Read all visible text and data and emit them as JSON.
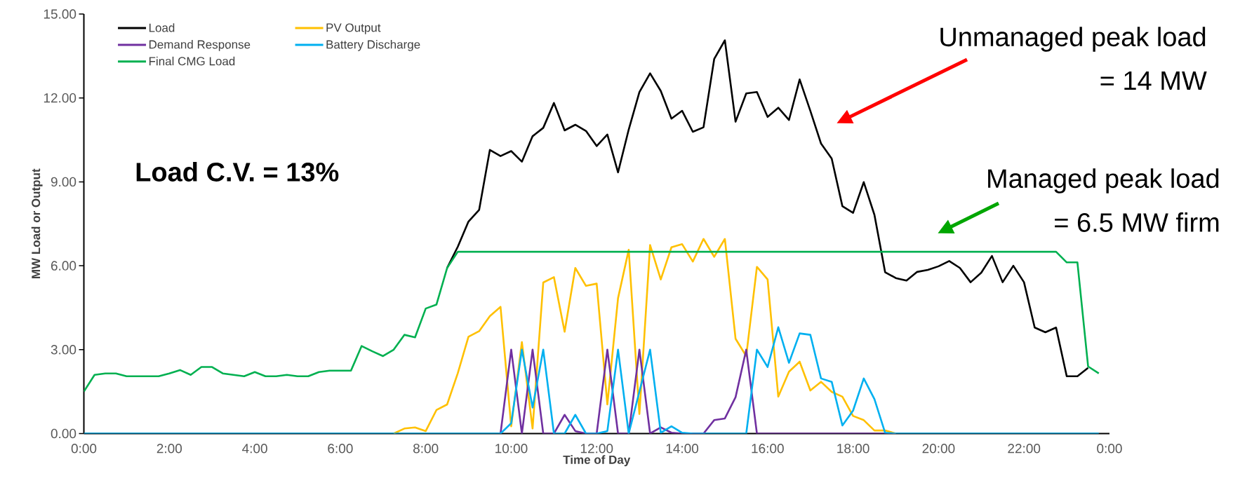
{
  "chart_data": {
    "type": "line",
    "xlabel": "Time of Day",
    "ylabel": "MW Load or Output",
    "x": [
      0,
      0.25,
      0.5,
      0.75,
      1,
      1.25,
      1.5,
      1.75,
      2,
      2.25,
      2.5,
      2.75,
      3,
      3.25,
      3.5,
      3.75,
      4,
      4.25,
      4.5,
      4.75,
      5,
      5.25,
      5.5,
      5.75,
      6,
      6.25,
      6.5,
      6.75,
      7,
      7.25,
      7.5,
      7.75,
      8,
      8.25,
      8.5,
      8.75,
      9,
      9.25,
      9.5,
      9.75,
      10,
      10.25,
      10.5,
      10.75,
      11,
      11.25,
      11.5,
      11.75,
      12,
      12.25,
      12.5,
      12.75,
      13,
      13.25,
      13.5,
      13.75,
      14,
      14.25,
      14.5,
      14.75,
      15,
      15.25,
      15.5,
      15.75,
      16,
      16.25,
      16.5,
      16.75,
      17,
      17.25,
      17.5,
      17.75,
      18,
      18.25,
      18.5,
      18.75,
      19,
      19.25,
      19.5,
      19.75,
      20,
      20.25,
      20.5,
      20.75,
      21,
      21.25,
      21.5,
      21.75,
      22,
      22.25,
      22.5,
      22.75,
      23,
      23.25,
      23.5,
      23.75
    ],
    "series": [
      {
        "name": "Load",
        "color": "#000000",
        "values": [
          null,
          null,
          null,
          null,
          null,
          null,
          null,
          null,
          null,
          null,
          null,
          null,
          null,
          null,
          null,
          null,
          null,
          null,
          null,
          null,
          null,
          null,
          null,
          null,
          null,
          null,
          null,
          null,
          null,
          null,
          null,
          null,
          null,
          null,
          5.92,
          6.68,
          7.58,
          8.0,
          10.14,
          9.92,
          10.1,
          9.72,
          10.63,
          10.93,
          11.82,
          10.84,
          11.04,
          10.82,
          10.28,
          10.69,
          9.34,
          10.87,
          12.21,
          12.88,
          12.25,
          11.26,
          11.54,
          10.79,
          10.95,
          13.39,
          14.06,
          11.15,
          12.16,
          12.21,
          11.32,
          11.65,
          11.21,
          12.66,
          11.54,
          10.37,
          9.83,
          8.13,
          7.89,
          8.99,
          7.82,
          5.77,
          5.56,
          5.47,
          5.78,
          5.85,
          5.98,
          6.17,
          5.92,
          5.41,
          5.75,
          6.35,
          5.41,
          6.0,
          5.41,
          3.79,
          3.62,
          3.79,
          2.05,
          2.05,
          2.35,
          null
        ]
      },
      {
        "name": "PV Output",
        "color": "#ffc000",
        "values": [
          null,
          null,
          null,
          null,
          null,
          null,
          null,
          null,
          null,
          null,
          null,
          null,
          null,
          null,
          null,
          null,
          null,
          null,
          null,
          null,
          null,
          null,
          null,
          null,
          null,
          null,
          null,
          null,
          null,
          0,
          0.18,
          0.22,
          0.09,
          0.84,
          1.04,
          2.16,
          3.46,
          3.66,
          4.2,
          4.53,
          0.26,
          3.27,
          0.18,
          5.4,
          5.59,
          3.64,
          5.92,
          5.28,
          5.36,
          1.04,
          4.84,
          6.57,
          0.7,
          6.74,
          5.51,
          6.66,
          6.77,
          6.15,
          6.96,
          6.32,
          6.96,
          3.39,
          2.77,
          5.96,
          5.51,
          1.32,
          2.21,
          2.57,
          1.54,
          1.85,
          1.49,
          1.32,
          0.63,
          0.48,
          0.11,
          0.11,
          0,
          null,
          null,
          null,
          null,
          null,
          null,
          null,
          null,
          null,
          null,
          null,
          null,
          null,
          null,
          null,
          null,
          null,
          null,
          null
        ]
      },
      {
        "name": "Demand Response",
        "color": "#7030a0",
        "values": [
          null,
          null,
          null,
          null,
          null,
          null,
          null,
          null,
          null,
          null,
          null,
          null,
          null,
          null,
          null,
          null,
          null,
          null,
          null,
          null,
          null,
          null,
          null,
          null,
          null,
          null,
          null,
          null,
          null,
          null,
          null,
          null,
          null,
          null,
          null,
          null,
          null,
          null,
          null,
          0,
          3.0,
          0,
          3.0,
          0,
          0,
          0.67,
          0.09,
          0,
          0,
          3.0,
          0,
          0,
          3.0,
          0,
          0.22,
          0.03,
          0,
          0,
          0,
          0.48,
          0.54,
          1.3,
          3.0,
          0,
          0,
          0,
          0,
          0,
          0,
          0,
          0,
          0,
          0,
          0,
          0,
          0,
          0,
          null,
          null,
          null,
          null,
          null,
          null,
          null,
          null,
          null,
          null,
          null,
          null,
          null,
          null,
          null,
          null,
          null,
          null,
          null
        ]
      },
      {
        "name": "Battery Discharge",
        "color": "#00b0f0",
        "values": [
          0,
          0,
          0,
          0,
          0,
          0,
          0,
          0,
          0,
          0,
          0,
          0,
          0,
          0,
          0,
          0,
          0,
          0,
          0,
          0,
          0,
          0,
          0,
          0,
          0,
          0,
          0,
          0,
          0,
          0,
          0,
          0,
          0,
          0,
          0,
          0,
          0,
          0,
          0,
          0,
          0.37,
          3.0,
          0.93,
          3.0,
          0,
          0,
          0.67,
          0,
          0,
          0.09,
          3.0,
          0,
          1.5,
          3.0,
          0.03,
          0.26,
          0.03,
          0,
          0,
          0,
          0,
          0,
          0,
          3.0,
          2.38,
          3.8,
          2.53,
          3.58,
          3.53,
          1.97,
          1.85,
          0.29,
          0.82,
          1.97,
          1.23,
          0.03,
          0,
          0,
          0,
          0,
          0,
          0,
          0,
          0,
          0,
          0,
          0,
          0,
          0,
          0,
          0,
          0,
          0,
          0,
          0,
          0
        ]
      },
      {
        "name": "Final CMG Load",
        "color": "#00b050",
        "values": [
          1.5,
          2.1,
          2.15,
          2.15,
          2.05,
          2.05,
          2.05,
          2.05,
          2.15,
          2.27,
          2.1,
          2.38,
          2.38,
          2.15,
          2.1,
          2.05,
          2.2,
          2.05,
          2.05,
          2.1,
          2.05,
          2.05,
          2.2,
          2.25,
          2.25,
          2.25,
          3.13,
          2.94,
          2.77,
          3.0,
          3.53,
          3.44,
          4.47,
          4.61,
          5.92,
          6.5,
          6.5,
          6.5,
          6.5,
          6.5,
          6.5,
          6.5,
          6.5,
          6.5,
          6.5,
          6.5,
          6.5,
          6.5,
          6.5,
          6.5,
          6.5,
          6.5,
          6.5,
          6.5,
          6.5,
          6.5,
          6.5,
          6.5,
          6.5,
          6.5,
          6.5,
          6.5,
          6.5,
          6.5,
          6.5,
          6.5,
          6.5,
          6.5,
          6.5,
          6.5,
          6.5,
          6.5,
          6.5,
          6.5,
          6.5,
          6.5,
          6.5,
          6.5,
          6.5,
          6.5,
          6.5,
          6.5,
          6.5,
          6.5,
          6.5,
          6.5,
          6.5,
          6.5,
          6.5,
          6.5,
          6.5,
          6.5,
          6.12,
          6.12,
          2.4,
          2.15
        ]
      }
    ],
    "xlim": [
      0,
      24
    ],
    "ylim": [
      0,
      15
    ],
    "xticks": [
      {
        "value": 0,
        "label": "0:00"
      },
      {
        "value": 2,
        "label": "2:00"
      },
      {
        "value": 4,
        "label": "4:00"
      },
      {
        "value": 6,
        "label": "6:00"
      },
      {
        "value": 8,
        "label": "8:00"
      },
      {
        "value": 10,
        "label": "10:00"
      },
      {
        "value": 12,
        "label": "12:00"
      },
      {
        "value": 14,
        "label": "14:00"
      },
      {
        "value": 16,
        "label": "16:00"
      },
      {
        "value": 18,
        "label": "18:00"
      },
      {
        "value": 20,
        "label": "20:00"
      },
      {
        "value": 22,
        "label": "22:00"
      },
      {
        "value": 24,
        "label": "0:00"
      }
    ],
    "yticks": [
      {
        "value": 0,
        "label": "0.00"
      },
      {
        "value": 3,
        "label": "3.00"
      },
      {
        "value": 6,
        "label": "6.00"
      },
      {
        "value": 9,
        "label": "9.00"
      },
      {
        "value": 12,
        "label": "12.00"
      },
      {
        "value": 15,
        "label": "15.00"
      }
    ],
    "legend": "top left",
    "annotations": [
      "Load C.V. = 13%",
      "Unmanaged peak load",
      "= 14 MW",
      "Managed peak load",
      "= 6.5 MW firm"
    ]
  }
}
